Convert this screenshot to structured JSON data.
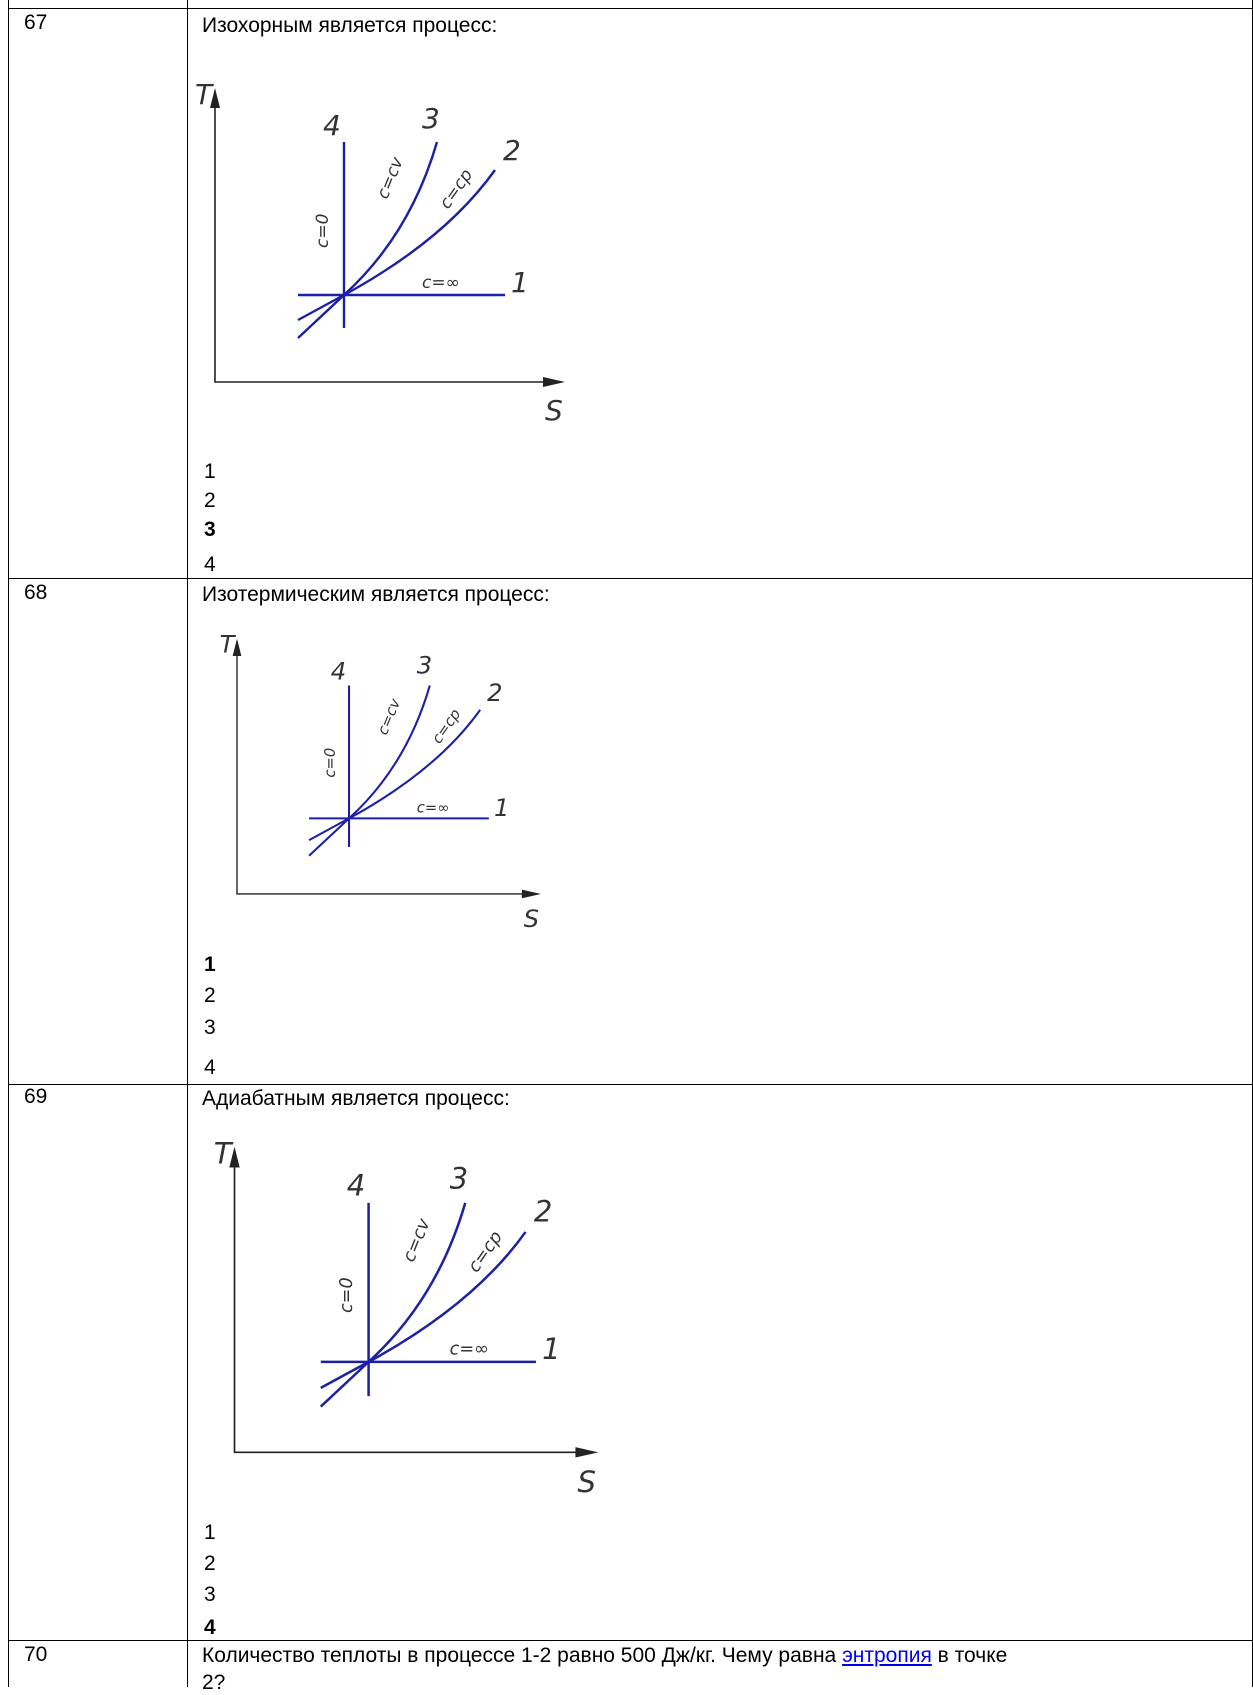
{
  "questions": [
    {
      "number": "67",
      "text": "Изохорным является процесс:",
      "answers": [
        "1",
        "2",
        "3",
        "4"
      ],
      "correct_index": 2
    },
    {
      "number": "68",
      "text": "Изотермическим является процесс:",
      "answers": [
        "1",
        "2",
        "3",
        "4"
      ],
      "correct_index": 0
    },
    {
      "number": "69",
      "text": "Адиабатным является процесс:",
      "answers": [
        "1",
        "2",
        "3",
        "4"
      ],
      "correct_index": 3
    },
    {
      "number": "70",
      "text_before": "Количество теплоты в процессе 1-2 равно 500 Дж/кг. Чему равна",
      "link_text": "энтропия",
      "text_after": "в точке",
      "text_line2": "2?"
    }
  ],
  "diagram": {
    "axis_y": "T",
    "axis_x": "S",
    "curve_numbers": [
      "4",
      "3",
      "2",
      "1"
    ],
    "curve_labels": [
      "c=0",
      "c=cv",
      "c=cp",
      "c=∞"
    ],
    "line_color": "#1d1fa6"
  }
}
